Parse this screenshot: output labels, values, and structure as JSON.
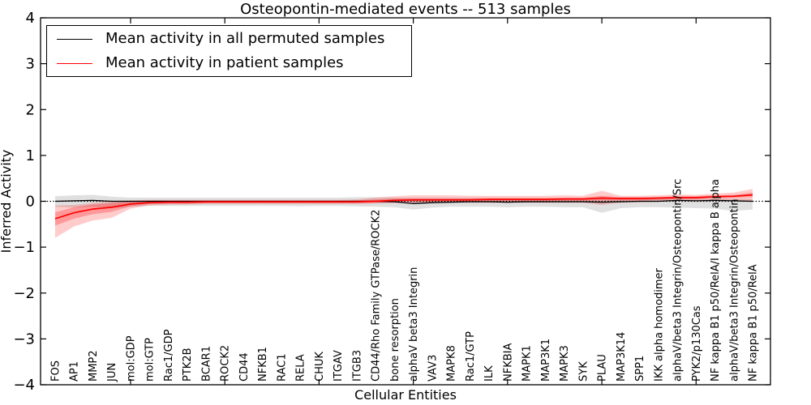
{
  "chart_data": {
    "type": "line",
    "title": "Osteopontin-mediated events -- 513 samples",
    "xlabel": "Cellular Entities",
    "ylabel": "Inferred Activity",
    "ylim": [
      -4,
      4
    ],
    "yticks": [
      4,
      3,
      2,
      1,
      0,
      -1,
      -2,
      -3,
      -4
    ],
    "x_major_tick_indices": [
      4,
      9,
      14,
      19,
      24,
      29,
      34
    ],
    "grid": false,
    "zero_line": true,
    "legend_position": "upper left",
    "categories": [
      "FOS",
      "AP1",
      "MMP2",
      "JUN",
      "mol:GDP",
      "mol:GTP",
      "Rac1/GDP",
      "PTK2B",
      "BCAR1",
      "ROCK2",
      "CD44",
      "NFKB1",
      "RAC1",
      "RELA",
      "CHUK",
      "ITGAV",
      "ITGB3",
      "CD44/Rho Family GTPase/ROCK2",
      "bone resorption",
      "alphaV beta3 Integrin",
      "VAV3",
      "MAPK8",
      "Rac1/GTP",
      "ILK",
      "NFKBIA",
      "MAPK1",
      "MAP3K1",
      "MAPK3",
      "SYK",
      "PLAU",
      "MAP3K14",
      "SPP1",
      "IKK alpha homodimer",
      "alphaV/beta3 Integrin/Osteopontin/Src",
      "PYK2/p130Cas",
      "NF kappa B1 p50/RelA/I kappa B alpha",
      "alphaV/beta3 Integrin/Osteopontin",
      "NF kappa B1 p50/RelA"
    ],
    "series": [
      {
        "name": "Mean activity in all permuted samples",
        "color": "#000000",
        "band_color": "rgba(0,0,0,0.12)",
        "values": [
          0.0,
          0.01,
          0.02,
          0.0,
          0.0,
          0.0,
          0.0,
          0.0,
          0.0,
          0.0,
          0.0,
          0.0,
          0.0,
          0.0,
          0.0,
          0.0,
          0.0,
          0.0,
          -0.01,
          -0.05,
          -0.03,
          -0.02,
          -0.01,
          -0.01,
          -0.02,
          -0.01,
          -0.01,
          -0.01,
          -0.01,
          -0.02,
          -0.01,
          0.0,
          0.0,
          0.02,
          0.01,
          0.02,
          0.01,
          0.0
        ],
        "band_upper": [
          0.11,
          0.13,
          0.14,
          0.1,
          0.08,
          0.08,
          0.08,
          0.08,
          0.08,
          0.08,
          0.08,
          0.08,
          0.08,
          0.08,
          0.08,
          0.08,
          0.09,
          0.09,
          0.08,
          0.07,
          0.07,
          0.07,
          0.07,
          0.07,
          0.07,
          0.07,
          0.07,
          0.07,
          0.07,
          0.06,
          0.06,
          0.06,
          0.06,
          0.07,
          0.06,
          0.07,
          0.06,
          0.05
        ],
        "band_lower": [
          -0.12,
          -0.14,
          -0.12,
          -0.15,
          -0.12,
          -0.1,
          -0.1,
          -0.1,
          -0.1,
          -0.1,
          -0.1,
          -0.1,
          -0.1,
          -0.11,
          -0.1,
          -0.1,
          -0.11,
          -0.12,
          -0.13,
          -0.18,
          -0.14,
          -0.12,
          -0.12,
          -0.12,
          -0.13,
          -0.12,
          -0.12,
          -0.13,
          -0.13,
          -0.25,
          -0.15,
          -0.13,
          -0.13,
          -0.14,
          -0.15,
          -0.16,
          -0.21,
          -0.18
        ]
      },
      {
        "name": "Mean activity in patient samples",
        "color": "#ff0000",
        "band_color": "rgba(255,0,0,0.20)",
        "inner_band_color": "rgba(255,0,0,0.25)",
        "values": [
          -0.38,
          -0.25,
          -0.17,
          -0.13,
          -0.06,
          -0.03,
          -0.02,
          -0.02,
          -0.01,
          -0.01,
          -0.01,
          -0.01,
          -0.01,
          -0.01,
          -0.01,
          -0.01,
          -0.01,
          0.0,
          0.02,
          0.03,
          0.03,
          0.03,
          0.03,
          0.04,
          0.04,
          0.04,
          0.04,
          0.05,
          0.05,
          0.07,
          0.06,
          0.06,
          0.07,
          0.08,
          0.08,
          0.1,
          0.11,
          0.14
        ],
        "band_upper": [
          -0.09,
          -0.08,
          -0.04,
          0.0,
          0.02,
          0.03,
          0.03,
          0.03,
          0.03,
          0.03,
          0.03,
          0.03,
          0.03,
          0.03,
          0.03,
          0.03,
          0.04,
          0.08,
          0.11,
          0.13,
          0.13,
          0.13,
          0.12,
          0.12,
          0.12,
          0.12,
          0.12,
          0.13,
          0.12,
          0.23,
          0.12,
          0.12,
          0.13,
          0.15,
          0.14,
          0.17,
          0.19,
          0.27
        ],
        "band_lower": [
          -0.8,
          -0.55,
          -0.42,
          -0.36,
          -0.16,
          -0.09,
          -0.07,
          -0.07,
          -0.06,
          -0.06,
          -0.06,
          -0.06,
          -0.06,
          -0.06,
          -0.06,
          -0.06,
          -0.06,
          -0.05,
          -0.04,
          -0.03,
          -0.03,
          -0.03,
          -0.03,
          -0.03,
          -0.03,
          -0.03,
          -0.03,
          -0.03,
          -0.03,
          -0.08,
          -0.03,
          -0.02,
          -0.01,
          0.01,
          0.01,
          0.02,
          0.03,
          0.0
        ],
        "inner_band_upper": [
          -0.24,
          -0.13,
          -0.07,
          -0.04,
          0.0,
          0.01,
          0.01,
          0.01,
          0.01,
          0.01,
          0.01,
          0.01,
          0.01,
          0.01,
          0.01,
          0.01,
          0.02,
          0.04,
          0.06,
          0.07,
          0.07,
          0.07,
          0.07,
          0.07,
          0.07,
          0.07,
          0.07,
          0.08,
          0.08,
          0.12,
          0.09,
          0.09,
          0.09,
          0.11,
          0.11,
          0.13,
          0.14,
          0.19
        ],
        "inner_band_lower": [
          -0.53,
          -0.38,
          -0.28,
          -0.23,
          -0.11,
          -0.06,
          -0.05,
          -0.05,
          -0.04,
          -0.04,
          -0.04,
          -0.04,
          -0.04,
          -0.04,
          -0.04,
          -0.04,
          -0.04,
          -0.03,
          -0.02,
          -0.01,
          -0.01,
          -0.01,
          -0.01,
          0.0,
          0.0,
          0.0,
          0.0,
          0.01,
          0.01,
          0.02,
          0.02,
          0.02,
          0.03,
          0.05,
          0.05,
          0.07,
          0.08,
          0.09
        ]
      }
    ]
  }
}
